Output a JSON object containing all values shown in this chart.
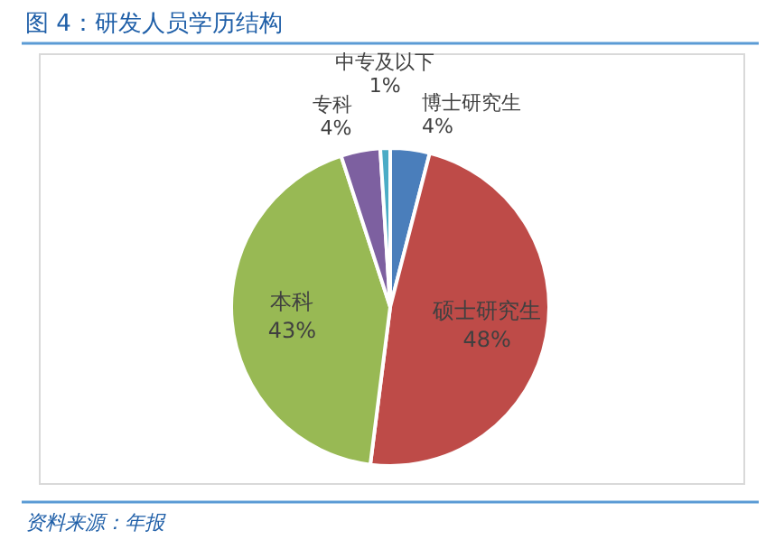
{
  "chart_data": {
    "type": "pie",
    "title": "图 4：研发人员学历结构",
    "categories": [
      "博士研究生",
      "硕士研究生",
      "本科",
      "专科",
      "中专及以下"
    ],
    "values": [
      4,
      48,
      43,
      4,
      1
    ],
    "value_labels": [
      "4%",
      "48%",
      "43%",
      "4%",
      "1%"
    ],
    "colors": [
      "#4a7ebb",
      "#be4b48",
      "#98b954",
      "#7d60a0",
      "#4bacc6"
    ],
    "annotations": [
      "资料来源：年报"
    ]
  }
}
